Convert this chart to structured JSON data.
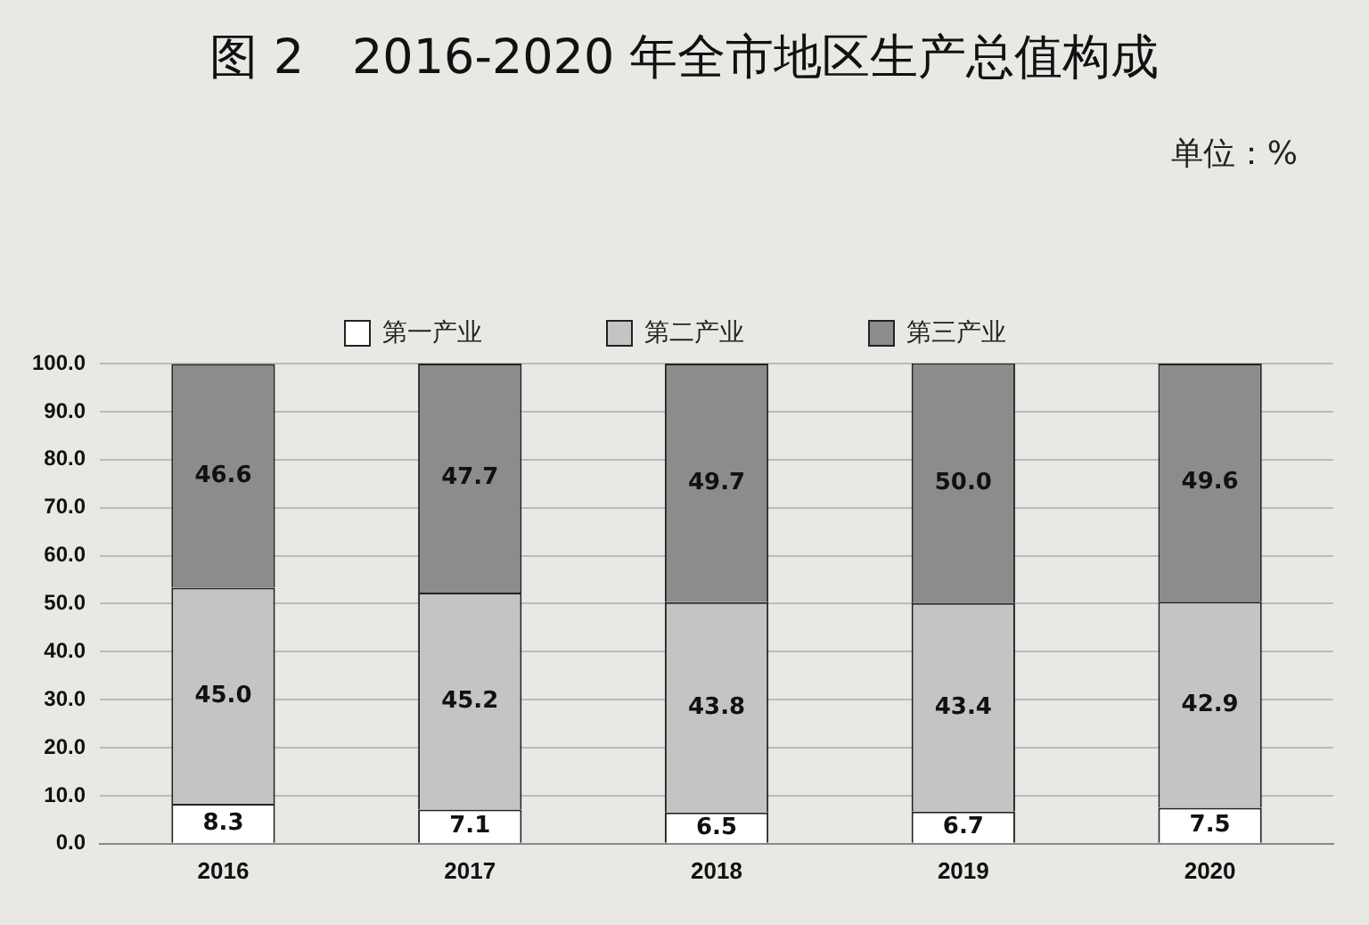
{
  "chart_data": {
    "type": "bar",
    "title": "图 2　2016-2020 年全市地区生产总值构成",
    "annotations": [
      "单位：%"
    ],
    "categories": [
      "2016",
      "2017",
      "2018",
      "2019",
      "2020"
    ],
    "stacked": true,
    "series": [
      {
        "name": "第一产业",
        "color": "#ffffff",
        "values": [
          8.3,
          7.1,
          6.5,
          6.7,
          7.5
        ],
        "value_labels": [
          "8.3",
          "7.1",
          "6.5",
          "6.7",
          "7.5"
        ]
      },
      {
        "name": "第二产业",
        "color": "#c4c4c4",
        "values": [
          45.0,
          45.2,
          43.8,
          43.4,
          42.9
        ],
        "value_labels": [
          "45.0",
          "45.2",
          "43.8",
          "43.4",
          "42.9"
        ]
      },
      {
        "name": "第三产业",
        "color": "#8c8c8c",
        "values": [
          46.6,
          47.7,
          49.7,
          50.0,
          49.6
        ],
        "value_labels": [
          "46.6",
          "47.7",
          "49.7",
          "50.0",
          "49.6"
        ]
      }
    ],
    "ylim": [
      0,
      100
    ],
    "yticks": [
      {
        "value": 0,
        "label": "0.0"
      },
      {
        "value": 10,
        "label": "10.0"
      },
      {
        "value": 20,
        "label": "20.0"
      },
      {
        "value": 30,
        "label": "30.0"
      },
      {
        "value": 40,
        "label": "40.0"
      },
      {
        "value": 50,
        "label": "50.0"
      },
      {
        "value": 60,
        "label": "60.0"
      },
      {
        "value": 70,
        "label": "70.0"
      },
      {
        "value": 80,
        "label": "80.0"
      },
      {
        "value": 90,
        "label": "90.0"
      },
      {
        "value": 100,
        "label": "100.0"
      }
    ],
    "grid": "y",
    "legend": "top"
  }
}
